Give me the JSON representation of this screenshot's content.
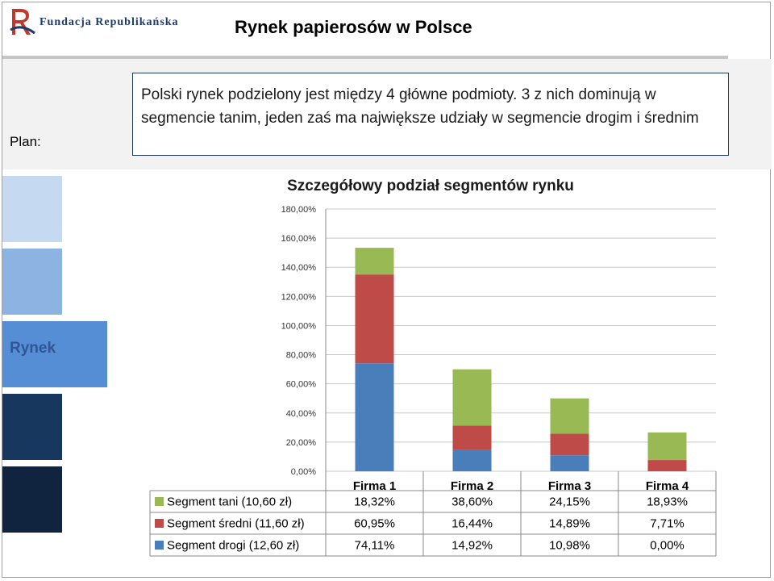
{
  "header": {
    "logo_text": "Fundacja Republikańska",
    "title": "Rynek papierosów w Polsce"
  },
  "plan": {
    "label": "Plan:",
    "text": "Polski rynek podzielony jest między 4 główne podmioty. 3 z nich dominują w segmencie tanim, jeden zaś ma największe udziały w segmencie drogim i średnim"
  },
  "sidebar": {
    "section_label": "Rynek",
    "colors": [
      "#c5d9f1",
      "#8db3e2",
      "#558ed5",
      "#17375e",
      "#10243f"
    ]
  },
  "chart_data": {
    "type": "bar",
    "stacked": true,
    "title": "Szczegółowy podział segmentów rynku",
    "categories": [
      "Firma 1",
      "Firma 2",
      "Firma 3",
      "Firma 4"
    ],
    "ylim": [
      0,
      180
    ],
    "y_ticks": [
      "0,00%",
      "20,00%",
      "40,00%",
      "60,00%",
      "80,00%",
      "100,00%",
      "120,00%",
      "140,00%",
      "160,00%",
      "180,00%"
    ],
    "grid": true,
    "legend": "data-table-left",
    "series": [
      {
        "name": "Segment drogi (12,60 zł)",
        "color": "#4a7ebb",
        "values": [
          74.11,
          14.92,
          10.98,
          0.0
        ],
        "labels": [
          "74,11%",
          "14,92%",
          "10,98%",
          "0,00%"
        ]
      },
      {
        "name": "Segment średni (11,60 zł)",
        "color": "#be4b48",
        "values": [
          60.95,
          16.44,
          14.89,
          7.71
        ],
        "labels": [
          "60,95%",
          "16,44%",
          "14,89%",
          "7,71%"
        ]
      },
      {
        "name": "Segment tani (10,60 zł)",
        "color": "#98b954",
        "values": [
          18.32,
          38.6,
          24.15,
          18.93
        ],
        "labels": [
          "18,32%",
          "38,60%",
          "24,15%",
          "18,93%"
        ]
      }
    ],
    "table_row_order": [
      2,
      1,
      0
    ]
  }
}
